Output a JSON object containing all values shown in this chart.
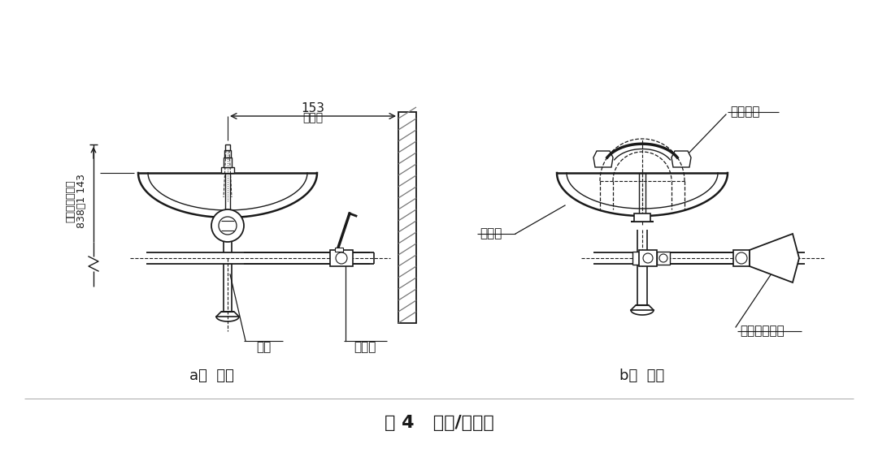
{
  "title": "图 4   洗眼/洗脸器",
  "label_a": "a）  正面",
  "label_b": "b）  侧面",
  "dim_153": "153",
  "dim_min": "最小值",
  "dim_height": "838～1 143",
  "dim_height_label": "至使用者站立面",
  "label_pipe": "管道",
  "label_valve": "控制阀",
  "label_basin": "洗眼盆",
  "label_nozzle": "洗眼喷头",
  "label_actuator": "阀门驱动装置",
  "bg_color": "#ffffff",
  "lc": "#1a1a1a",
  "gc": "#777777"
}
